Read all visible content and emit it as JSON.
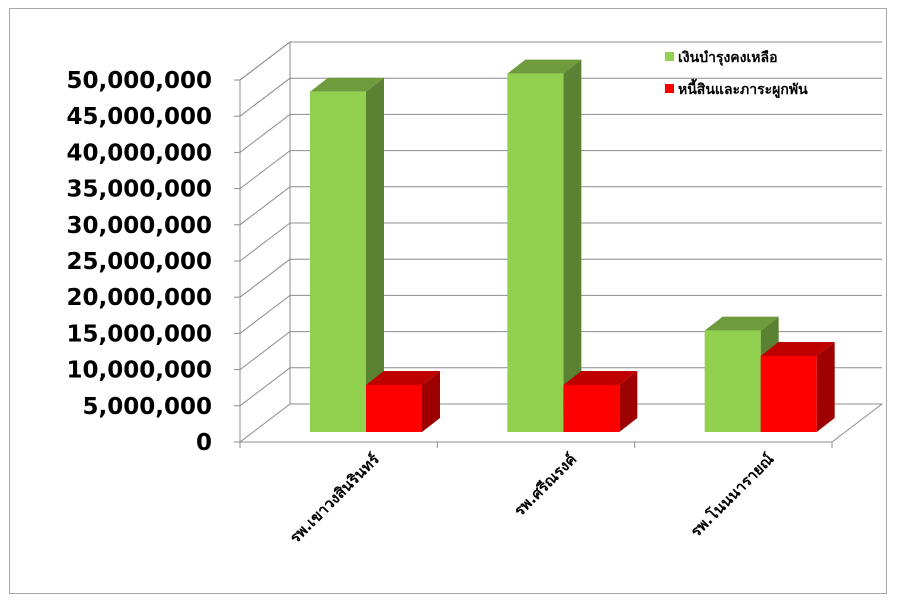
{
  "chart_data": {
    "type": "bar",
    "style": "3d-clustered-column",
    "categories": [
      "รพ.เขาวงสินรินทร์",
      "รพ.ศรีณรงค์",
      "รพ.โนนนารายณ์"
    ],
    "series": [
      {
        "name": "เงินบำรุงคงเหลือ",
        "values": [
          47000000,
          49500000,
          14000000
        ],
        "color": "#92d050"
      },
      {
        "name": "หนี้สินและภาระผูกพัน",
        "values": [
          6500000,
          6500000,
          10500000
        ],
        "color": "#ff0000"
      }
    ],
    "ylim": [
      0,
      50000000
    ],
    "yticks": [
      "0",
      "5,000,000",
      "10,000,000",
      "15,000,000",
      "20,000,000",
      "25,000,000",
      "30,000,000",
      "35,000,000",
      "40,000,000",
      "45,000,000",
      "50,000,000"
    ],
    "grid": true,
    "legend_position": "top-right"
  }
}
